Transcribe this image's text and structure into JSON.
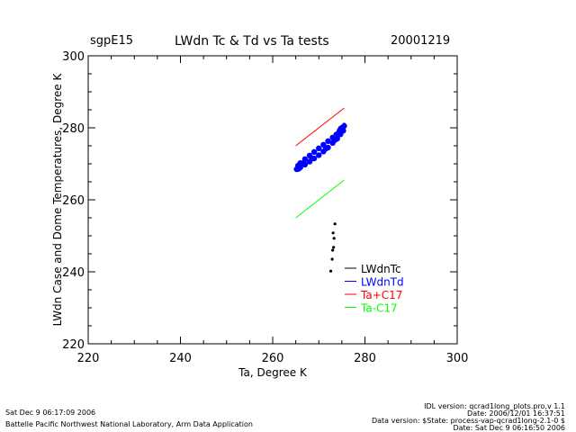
{
  "header": {
    "site": "sgpE15",
    "title": "LWdn Tc & Td vs Ta tests",
    "date": "20001219"
  },
  "footer": {
    "left_line1": "Sat Dec  9 06:17:09 2006",
    "left_line2": "Battelle Pacific Northwest National Laboratory, Arm Data Application",
    "right_line1": "IDL version: qcrad1long_plots.pro,v 1.1",
    "right_line2": "Date: 2006/12/01 16:37:51",
    "right_line3": "Data version: $State: process-vap-qcrad1long-2.1-0 $",
    "right_line4": "Date: Sat Dec  9 06:16:50 2006"
  },
  "chart_data": {
    "type": "scatter",
    "xlabel": "Ta, Degree K",
    "ylabel": "LWdn Case and Dome Temperatures, Degree K",
    "xlim": [
      220,
      300
    ],
    "ylim": [
      220,
      300
    ],
    "xticks": [
      220,
      240,
      260,
      280,
      300
    ],
    "yticks": [
      220,
      240,
      260,
      280,
      300
    ],
    "grid": false,
    "legend_position": "lower-right",
    "series": [
      {
        "name": "LWdnTc",
        "color": "#000000",
        "kind": "points",
        "points": [
          [
            265.5,
            269.3
          ],
          [
            266.5,
            270.5
          ],
          [
            268,
            272.5
          ],
          [
            270,
            274.5
          ],
          [
            272,
            276.5
          ],
          [
            273.5,
            278.3
          ],
          [
            274.5,
            280
          ],
          [
            275.5,
            281
          ],
          [
            275,
            279
          ],
          [
            273,
            276
          ],
          [
            271,
            273.5
          ],
          [
            269,
            271.3
          ],
          [
            267,
            269.5
          ],
          [
            272.6,
            240.2
          ],
          [
            272.9,
            243.5
          ],
          [
            273.1,
            250.8
          ],
          [
            273.2,
            246.8
          ],
          [
            273.3,
            249.3
          ],
          [
            273.5,
            253.3
          ],
          [
            273,
            246.0
          ]
        ]
      },
      {
        "name": "LWdnTd",
        "color": "#0000ff",
        "kind": "points",
        "points": [
          [
            265.2,
            268.5
          ],
          [
            265.5,
            269.5
          ],
          [
            266,
            270.2
          ],
          [
            267,
            271.3
          ],
          [
            268,
            272.3
          ],
          [
            269,
            273.3
          ],
          [
            270,
            274.3
          ],
          [
            271,
            275.3
          ],
          [
            272,
            276.3
          ],
          [
            273,
            277.3
          ],
          [
            274,
            278.3
          ],
          [
            274.5,
            279.2
          ],
          [
            275,
            280
          ],
          [
            275.5,
            280.5
          ],
          [
            275.3,
            279.2
          ],
          [
            274.7,
            278.2
          ],
          [
            274,
            277
          ],
          [
            273,
            275.8
          ],
          [
            272,
            274.5
          ],
          [
            271,
            273.4
          ],
          [
            270,
            272.4
          ],
          [
            269,
            271.5
          ],
          [
            268,
            270.6
          ],
          [
            267,
            269.8
          ],
          [
            266,
            269
          ],
          [
            265.6,
            268.6
          ],
          [
            268.5,
            271.5
          ],
          [
            271.5,
            274.2
          ],
          [
            273.5,
            276.6
          ]
        ]
      },
      {
        "name": "Ta+C17",
        "color": "#ff0000",
        "kind": "line",
        "points": [
          [
            265,
            275
          ],
          [
            275.5,
            285.5
          ]
        ]
      },
      {
        "name": "Ta-C17",
        "color": "#00ff00",
        "kind": "line",
        "points": [
          [
            265,
            255
          ],
          [
            275.5,
            265.5
          ]
        ]
      }
    ]
  }
}
